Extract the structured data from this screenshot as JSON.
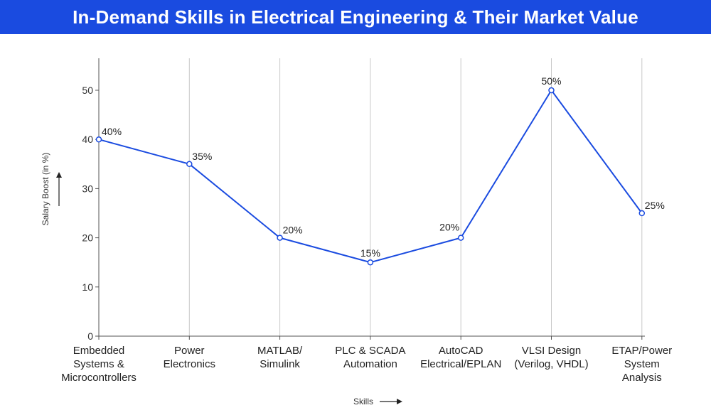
{
  "header": {
    "title": "In-Demand Skills in Electrical Engineering & Their Market Value"
  },
  "colors": {
    "header_bg": "#1a4be0",
    "line": "#1a4be0",
    "grid": "#c8c8c8"
  },
  "chart_data": {
    "type": "line",
    "title": "In-Demand Skills in Electrical Engineering & Their Market Value",
    "xlabel": "Skills",
    "ylabel": "Salary Boost (in %)",
    "ylim": [
      0,
      55
    ],
    "yticks": [
      0,
      10,
      20,
      30,
      40,
      50
    ],
    "grid": "vertical",
    "categories": [
      [
        "Embedded",
        "Systems &",
        "Microcontrollers"
      ],
      [
        "Power",
        "Electronics"
      ],
      [
        "MATLAB/",
        "Simulink"
      ],
      [
        "PLC & SCADA",
        "Automation"
      ],
      [
        "AutoCAD",
        "Electrical/EPLAN"
      ],
      [
        "VLSI Design",
        "(Verilog, VHDL)"
      ],
      [
        "ETAP/Power",
        "System",
        "Analysis"
      ]
    ],
    "series": [
      {
        "values": [
          40,
          35,
          20,
          15,
          20,
          50,
          25
        ],
        "labels": [
          "40%",
          "35%",
          "20%",
          "15%",
          "20%",
          "50%",
          "25%"
        ]
      }
    ]
  }
}
